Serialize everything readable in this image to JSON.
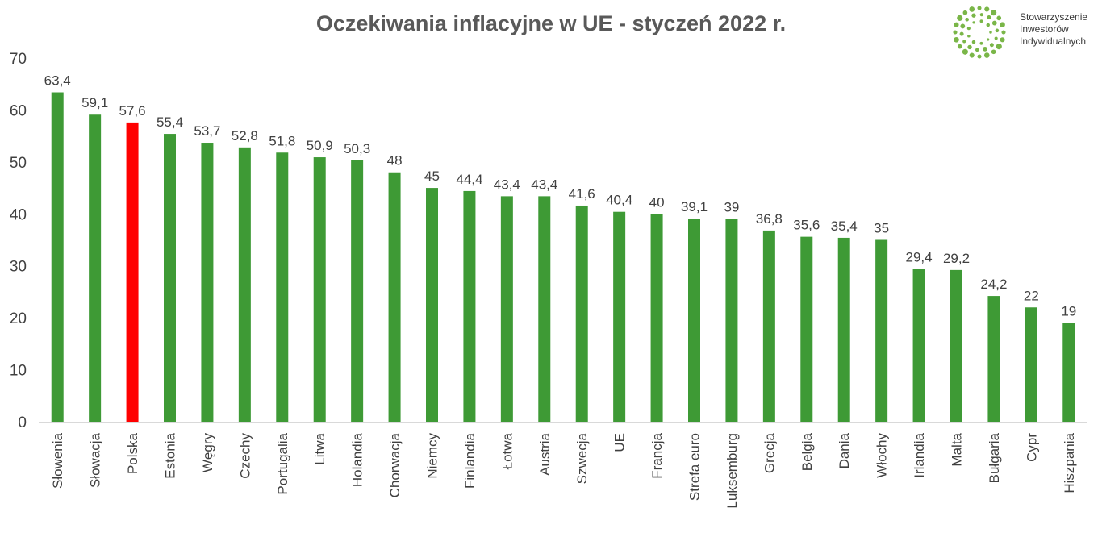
{
  "chart_data": {
    "type": "bar",
    "title": "Oczekiwania inflacyjne w UE - styczeń 2022 r.",
    "xlabel": "",
    "ylabel": "",
    "ylim": [
      0,
      70
    ],
    "yticks": [
      "0",
      "10",
      "20",
      "30",
      "40",
      "50",
      "60",
      "70"
    ],
    "categories": [
      "Słowenia",
      "Słowacja",
      "Polska",
      "Estonia",
      "Węgry",
      "Czechy",
      "Portugalia",
      "Litwa",
      "Holandia",
      "Chorwacja",
      "Niemcy",
      "Finlandia",
      "Łotwa",
      "Austria",
      "Szwecja",
      "UE",
      "Francja",
      "Strefa euro",
      "Luksemburg",
      "Grecja",
      "Belgia",
      "Dania",
      "Włochy",
      "Irlandia",
      "Malta",
      "Bułgaria",
      "Cypr",
      "Hiszpania"
    ],
    "values": [
      63.4,
      59.1,
      57.6,
      55.4,
      53.7,
      52.8,
      51.8,
      50.9,
      50.3,
      48,
      45,
      44.4,
      43.4,
      43.4,
      41.6,
      40.4,
      40,
      39.1,
      39,
      36.8,
      35.6,
      35.4,
      35,
      29.4,
      29.2,
      24.2,
      22,
      19
    ],
    "data_labels": [
      "63,4",
      "59,1",
      "57,6",
      "55,4",
      "53,7",
      "52,8",
      "51,8",
      "50,9",
      "50,3",
      "48",
      "45",
      "44,4",
      "43,4",
      "43,4",
      "41,6",
      "40,4",
      "40",
      "39,1",
      "39",
      "36,8",
      "35,6",
      "35,4",
      "35",
      "29,4",
      "29,2",
      "24,2",
      "22",
      "19"
    ],
    "highlight_index": 2,
    "grid": false,
    "legend": "none",
    "colors": {
      "bar": "#3e9a35",
      "highlight": "#ff0000",
      "axis": "#d9d9d9",
      "text": "#404040",
      "title": "#595959",
      "logo": "#7ab648"
    }
  },
  "logo": {
    "icon": "circle-of-dots-icon",
    "lines": [
      "Stowarzyszenie",
      "Inwestorów",
      "Indywidualnych"
    ]
  }
}
